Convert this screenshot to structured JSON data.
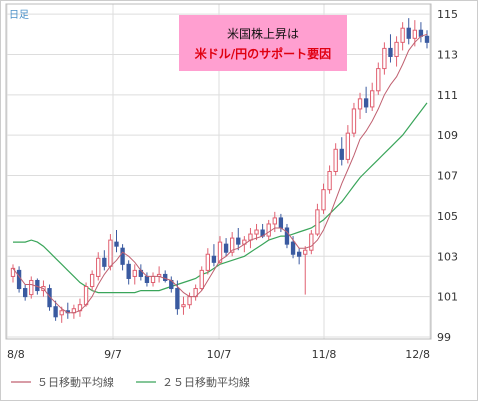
{
  "chart_data": {
    "type": "candlestick",
    "frequency_label": "日足",
    "x_ticks": [
      "8/8",
      "9/7",
      "10/7",
      "11/8",
      "12/8"
    ],
    "y_ticks": [
      99,
      101,
      103,
      105,
      107,
      109,
      111,
      113,
      115
    ],
    "ylim": [
      98.9,
      115.5
    ],
    "grid": true,
    "annotation": {
      "line1": "米国株上昇は",
      "line2": "米ドル/円のサポート要因"
    },
    "legend": [
      {
        "name": "５日移動平均線",
        "color": "#c06070"
      },
      {
        "name": "２５日移動平均線",
        "color": "#3aa55a"
      }
    ],
    "colors": {
      "up": "#e06070",
      "down": "#3a5aa0",
      "ma5": "#c06070",
      "ma25": "#3aa55a",
      "grid": "#dddddd",
      "annotation_bg": "#ff9fd0"
    },
    "candles": [
      [
        102.0,
        102.6,
        101.7,
        102.4
      ],
      [
        102.3,
        102.5,
        101.2,
        101.4
      ],
      [
        101.4,
        101.6,
        100.8,
        101.0
      ],
      [
        101.1,
        102.0,
        100.9,
        101.8
      ],
      [
        101.8,
        101.9,
        101.1,
        101.3
      ],
      [
        101.3,
        101.8,
        101.0,
        101.5
      ],
      [
        101.4,
        101.6,
        100.3,
        100.5
      ],
      [
        100.5,
        100.8,
        99.8,
        100.0
      ],
      [
        100.1,
        100.5,
        99.7,
        100.3
      ],
      [
        100.3,
        100.7,
        99.9,
        100.2
      ],
      [
        100.2,
        100.6,
        99.9,
        100.4
      ],
      [
        100.3,
        100.9,
        100.0,
        100.6
      ],
      [
        100.6,
        101.7,
        100.5,
        101.5
      ],
      [
        101.5,
        102.3,
        101.3,
        102.1
      ],
      [
        102.0,
        103.2,
        101.8,
        102.9
      ],
      [
        102.9,
        103.3,
        102.3,
        102.5
      ],
      [
        102.5,
        104.1,
        102.3,
        103.8
      ],
      [
        103.7,
        104.3,
        103.2,
        103.5
      ],
      [
        103.4,
        103.6,
        102.3,
        102.6
      ],
      [
        102.6,
        102.8,
        101.6,
        101.9
      ],
      [
        102.0,
        102.6,
        101.6,
        102.3
      ],
      [
        102.3,
        102.6,
        101.8,
        102.0
      ],
      [
        102.0,
        102.2,
        101.5,
        101.7
      ],
      [
        101.7,
        102.2,
        101.5,
        102.0
      ],
      [
        102.0,
        102.5,
        101.7,
        102.1
      ],
      [
        102.1,
        102.3,
        101.7,
        101.8
      ],
      [
        101.8,
        102.0,
        101.2,
        101.4
      ],
      [
        101.4,
        101.8,
        100.1,
        100.4
      ],
      [
        100.5,
        101.0,
        100.1,
        100.6
      ],
      [
        100.6,
        101.2,
        100.4,
        101.0
      ],
      [
        101.0,
        101.6,
        100.8,
        101.4
      ],
      [
        101.4,
        102.5,
        101.3,
        102.3
      ],
      [
        102.3,
        103.4,
        102.1,
        103.1
      ],
      [
        103.0,
        103.6,
        102.5,
        102.7
      ],
      [
        102.7,
        104.0,
        102.6,
        103.7
      ],
      [
        103.6,
        103.9,
        103.0,
        103.2
      ],
      [
        103.2,
        104.2,
        103.0,
        103.9
      ],
      [
        103.9,
        104.4,
        103.3,
        103.6
      ],
      [
        103.6,
        104.0,
        103.2,
        103.8
      ],
      [
        103.8,
        104.4,
        103.4,
        104.1
      ],
      [
        104.1,
        104.6,
        103.8,
        104.3
      ],
      [
        104.3,
        104.6,
        103.9,
        104.0
      ],
      [
        104.0,
        104.8,
        103.8,
        104.6
      ],
      [
        104.6,
        105.2,
        104.2,
        104.9
      ],
      [
        104.9,
        105.1,
        104.2,
        104.4
      ],
      [
        104.4,
        104.6,
        103.4,
        103.6
      ],
      [
        103.7,
        104.0,
        102.9,
        103.1
      ],
      [
        103.2,
        103.4,
        102.6,
        103.0
      ],
      [
        103.1,
        103.5,
        101.1,
        103.3
      ],
      [
        103.3,
        104.3,
        103.1,
        104.1
      ],
      [
        104.1,
        105.6,
        104.0,
        105.3
      ],
      [
        105.3,
        106.6,
        105.1,
        106.3
      ],
      [
        106.3,
        107.5,
        106.1,
        107.2
      ],
      [
        107.2,
        108.6,
        107.0,
        108.3
      ],
      [
        108.3,
        108.9,
        107.5,
        107.8
      ],
      [
        107.8,
        109.5,
        107.6,
        109.1
      ],
      [
        109.1,
        110.6,
        108.9,
        110.3
      ],
      [
        110.3,
        111.1,
        109.8,
        110.8
      ],
      [
        110.8,
        111.4,
        110.1,
        110.4
      ],
      [
        110.4,
        111.6,
        110.2,
        111.2
      ],
      [
        111.2,
        112.6,
        111.0,
        112.3
      ],
      [
        112.3,
        113.6,
        112.0,
        113.3
      ],
      [
        113.3,
        114.0,
        112.6,
        112.9
      ],
      [
        112.9,
        113.9,
        112.4,
        113.6
      ],
      [
        113.6,
        114.6,
        113.2,
        114.3
      ],
      [
        114.3,
        114.8,
        113.5,
        113.8
      ],
      [
        113.8,
        114.7,
        113.4,
        114.2
      ],
      [
        114.2,
        114.6,
        113.6,
        113.9
      ],
      [
        113.9,
        114.2,
        113.3,
        113.6
      ]
    ],
    "ma5": [
      102.4,
      102.0,
      101.6,
      101.6,
      101.5,
      101.4,
      101.0,
      100.7,
      100.4,
      100.2,
      100.2,
      100.3,
      100.6,
      101.0,
      101.6,
      102.1,
      102.5,
      102.8,
      103.2,
      103.0,
      102.7,
      102.3,
      102.0,
      102.0,
      102.0,
      101.9,
      101.8,
      101.5,
      101.2,
      101.0,
      101.0,
      101.3,
      101.8,
      102.3,
      102.8,
      103.0,
      103.3,
      103.4,
      103.6,
      103.8,
      103.9,
      104.0,
      104.2,
      104.4,
      104.4,
      104.2,
      103.8,
      103.4,
      103.4,
      103.5,
      103.8,
      104.3,
      105.0,
      105.8,
      106.6,
      107.3,
      108.0,
      108.8,
      109.2,
      109.7,
      110.3,
      111.0,
      111.5,
      111.9,
      112.5,
      113.2,
      113.6,
      113.9,
      114.0
    ],
    "ma25": [
      103.7,
      103.7,
      103.7,
      103.8,
      103.7,
      103.5,
      103.2,
      102.9,
      102.6,
      102.3,
      102.0,
      101.7,
      101.5,
      101.3,
      101.2,
      101.2,
      101.2,
      101.2,
      101.2,
      101.2,
      101.2,
      101.3,
      101.3,
      101.3,
      101.3,
      101.4,
      101.5,
      101.6,
      101.7,
      101.8,
      101.9,
      102.1,
      102.2,
      102.4,
      102.6,
      102.7,
      102.8,
      102.9,
      103.0,
      103.2,
      103.4,
      103.6,
      103.8,
      103.9,
      104.0,
      104.0,
      104.1,
      104.2,
      104.3,
      104.4,
      104.6,
      104.8,
      105.1,
      105.4,
      105.7,
      106.1,
      106.5,
      106.9,
      107.2,
      107.5,
      107.8,
      108.1,
      108.4,
      108.7,
      109.0,
      109.4,
      109.8,
      110.2,
      110.6
    ]
  }
}
